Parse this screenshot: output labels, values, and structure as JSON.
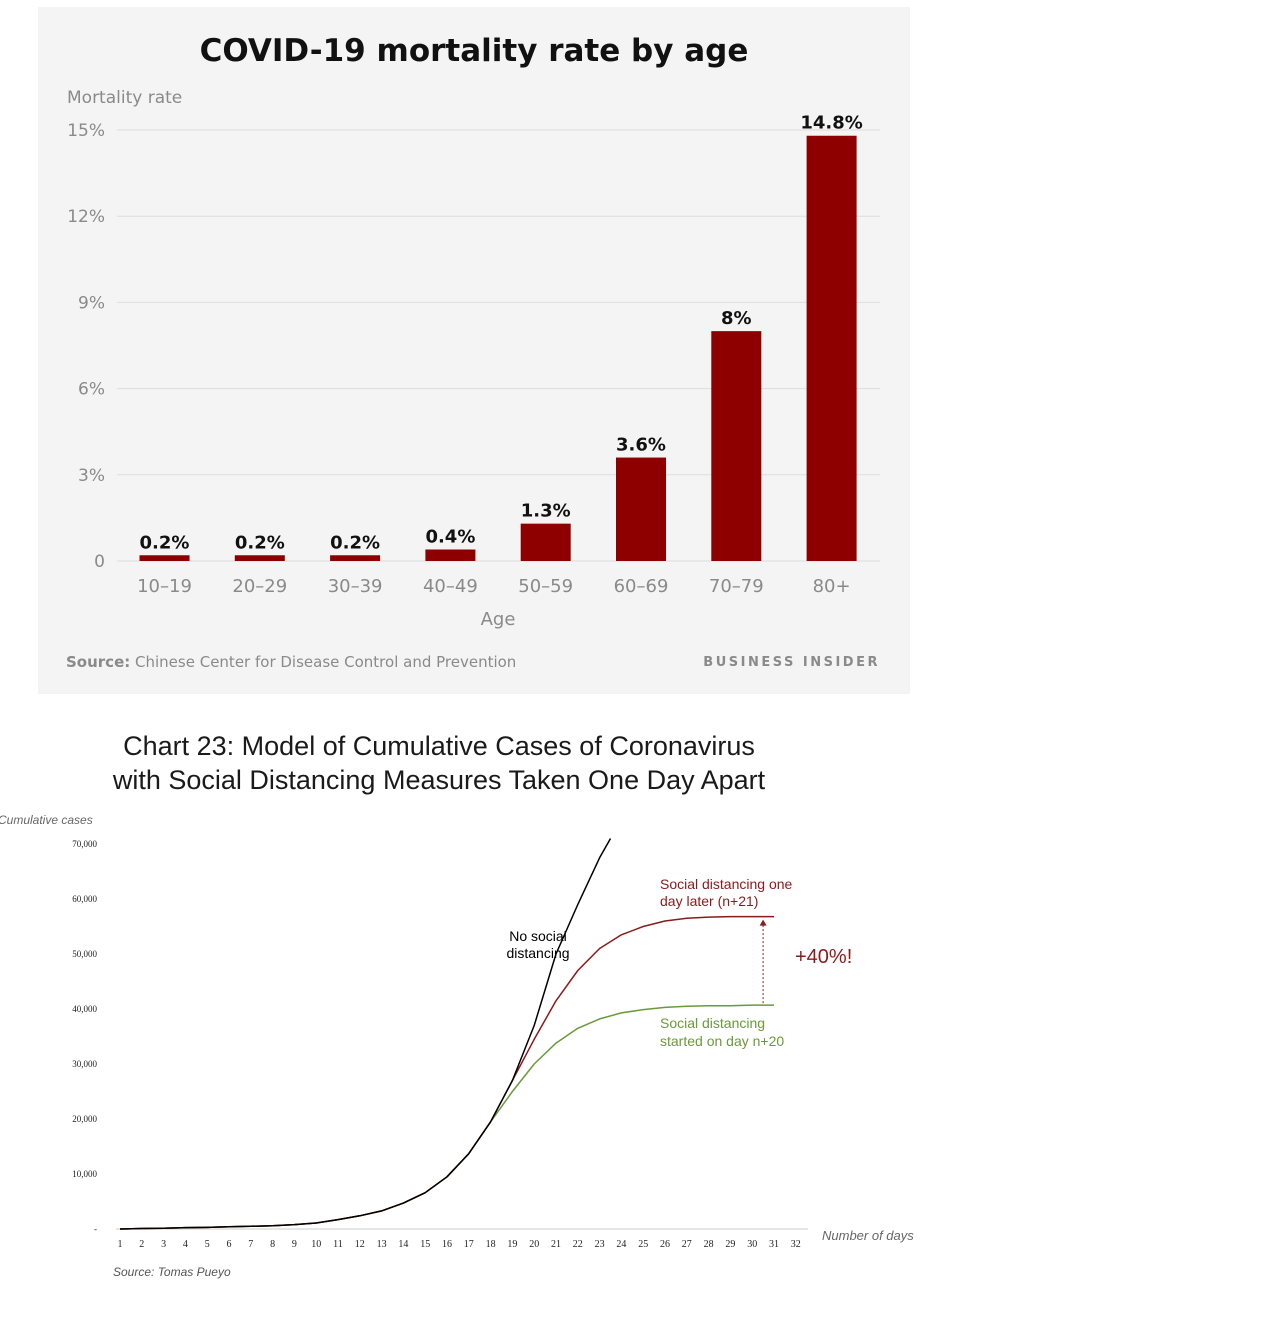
{
  "chart_data": [
    {
      "type": "bar",
      "title": "COVID-19 mortality rate by age",
      "ylabel": "Mortality rate",
      "xlabel": "Age",
      "categories": [
        "10–19",
        "20–29",
        "30–39",
        "40–49",
        "50–59",
        "60–69",
        "70–79",
        "80+"
      ],
      "values": [
        0.2,
        0.2,
        0.2,
        0.4,
        1.3,
        3.6,
        8,
        14.8
      ],
      "data_labels": [
        "0.2%",
        "0.2%",
        "0.2%",
        "0.4%",
        "1.3%",
        "3.6%",
        "8%",
        "14.8%"
      ],
      "ylim": [
        0,
        15
      ],
      "yticks": [
        0,
        3,
        6,
        9,
        12,
        15
      ],
      "ytick_labels": [
        "0",
        "3%",
        "6%",
        "9%",
        "12%",
        "15%"
      ],
      "grid": true,
      "bar_color": "#8e0000",
      "source_label": "Source:",
      "source_text": "Chinese Center for Disease Control and Prevention",
      "brand": "BUSINESS INSIDER"
    },
    {
      "type": "line",
      "title_lines": [
        "Chart 23: Model of Cumulative Cases of Coronavirus",
        "with Social Distancing Measures Taken One Day Apart"
      ],
      "ylabel": "Cumulative cases",
      "xlabel": "Number of days",
      "x": [
        1,
        2,
        3,
        4,
        5,
        6,
        7,
        8,
        9,
        10,
        11,
        12,
        13,
        14,
        15,
        16,
        17,
        18,
        19,
        20,
        21,
        22,
        23,
        24,
        25,
        26,
        27,
        28,
        29,
        30,
        31,
        32
      ],
      "xlim": [
        1,
        32
      ],
      "ylim": [
        0,
        70000
      ],
      "yticks": [
        0,
        10000,
        20000,
        30000,
        40000,
        50000,
        60000,
        70000
      ],
      "ytick_labels": [
        "-",
        "10,000",
        "20,000",
        "30,000",
        "40,000",
        "50,000",
        "60,000",
        "70,000"
      ],
      "series": [
        {
          "name": "No social distancing",
          "label_lines": [
            "No social",
            "distancing"
          ],
          "color": "#000000",
          "points": [
            [
              1,
              0
            ],
            [
              2,
              100
            ],
            [
              3,
              150
            ],
            [
              4,
              250
            ],
            [
              5,
              300
            ],
            [
              6,
              400
            ],
            [
              7,
              500
            ],
            [
              8,
              600
            ],
            [
              9,
              800
            ],
            [
              10,
              1100
            ],
            [
              11,
              1700
            ],
            [
              12,
              2400
            ],
            [
              13,
              3300
            ],
            [
              14,
              4700
            ],
            [
              15,
              6600
            ],
            [
              16,
              9500
            ],
            [
              17,
              13700
            ],
            [
              18,
              19500
            ],
            [
              19,
              27000
            ],
            [
              20,
              37000
            ],
            [
              21,
              50000
            ],
            [
              22,
              59000
            ],
            [
              23,
              67500
            ],
            [
              23.5,
              71000
            ]
          ]
        },
        {
          "name": "Social distancing one day later (n+21)",
          "label_lines": [
            "Social distancing one",
            "day later (n+21)"
          ],
          "color": "#8b1a1a",
          "points": [
            [
              1,
              0
            ],
            [
              2,
              100
            ],
            [
              3,
              150
            ],
            [
              4,
              250
            ],
            [
              5,
              300
            ],
            [
              6,
              400
            ],
            [
              7,
              500
            ],
            [
              8,
              600
            ],
            [
              9,
              800
            ],
            [
              10,
              1100
            ],
            [
              11,
              1700
            ],
            [
              12,
              2400
            ],
            [
              13,
              3300
            ],
            [
              14,
              4700
            ],
            [
              15,
              6600
            ],
            [
              16,
              9500
            ],
            [
              17,
              13700
            ],
            [
              18,
              19500
            ],
            [
              19,
              27000
            ],
            [
              20,
              34500
            ],
            [
              21,
              41500
            ],
            [
              22,
              47000
            ],
            [
              23,
              51000
            ],
            [
              24,
              53500
            ],
            [
              25,
              55000
            ],
            [
              26,
              56000
            ],
            [
              27,
              56500
            ],
            [
              28,
              56700
            ],
            [
              29,
              56800
            ],
            [
              30,
              56800
            ],
            [
              31,
              56800
            ]
          ]
        },
        {
          "name": "Social distancing started on day n+20",
          "label_lines": [
            "Social distancing",
            "started on day n+20"
          ],
          "color": "#6a9a3a",
          "points": [
            [
              1,
              0
            ],
            [
              2,
              100
            ],
            [
              3,
              150
            ],
            [
              4,
              250
            ],
            [
              5,
              300
            ],
            [
              6,
              400
            ],
            [
              7,
              500
            ],
            [
              8,
              600
            ],
            [
              9,
              800
            ],
            [
              10,
              1100
            ],
            [
              11,
              1700
            ],
            [
              12,
              2400
            ],
            [
              13,
              3300
            ],
            [
              14,
              4700
            ],
            [
              15,
              6600
            ],
            [
              16,
              9500
            ],
            [
              17,
              13700
            ],
            [
              18,
              19500
            ],
            [
              19,
              25000
            ],
            [
              20,
              30000
            ],
            [
              21,
              33800
            ],
            [
              22,
              36500
            ],
            [
              23,
              38200
            ],
            [
              24,
              39300
            ],
            [
              25,
              39900
            ],
            [
              26,
              40300
            ],
            [
              27,
              40500
            ],
            [
              28,
              40600
            ],
            [
              29,
              40600
            ],
            [
              30,
              40700
            ],
            [
              31,
              40700
            ]
          ]
        }
      ],
      "annotation": {
        "text": "+40%!",
        "x": 30.5,
        "from": 40700,
        "to": 56800,
        "color": "#8b1a1a"
      },
      "source_text": "Source: Tomas Pueyo"
    }
  ]
}
